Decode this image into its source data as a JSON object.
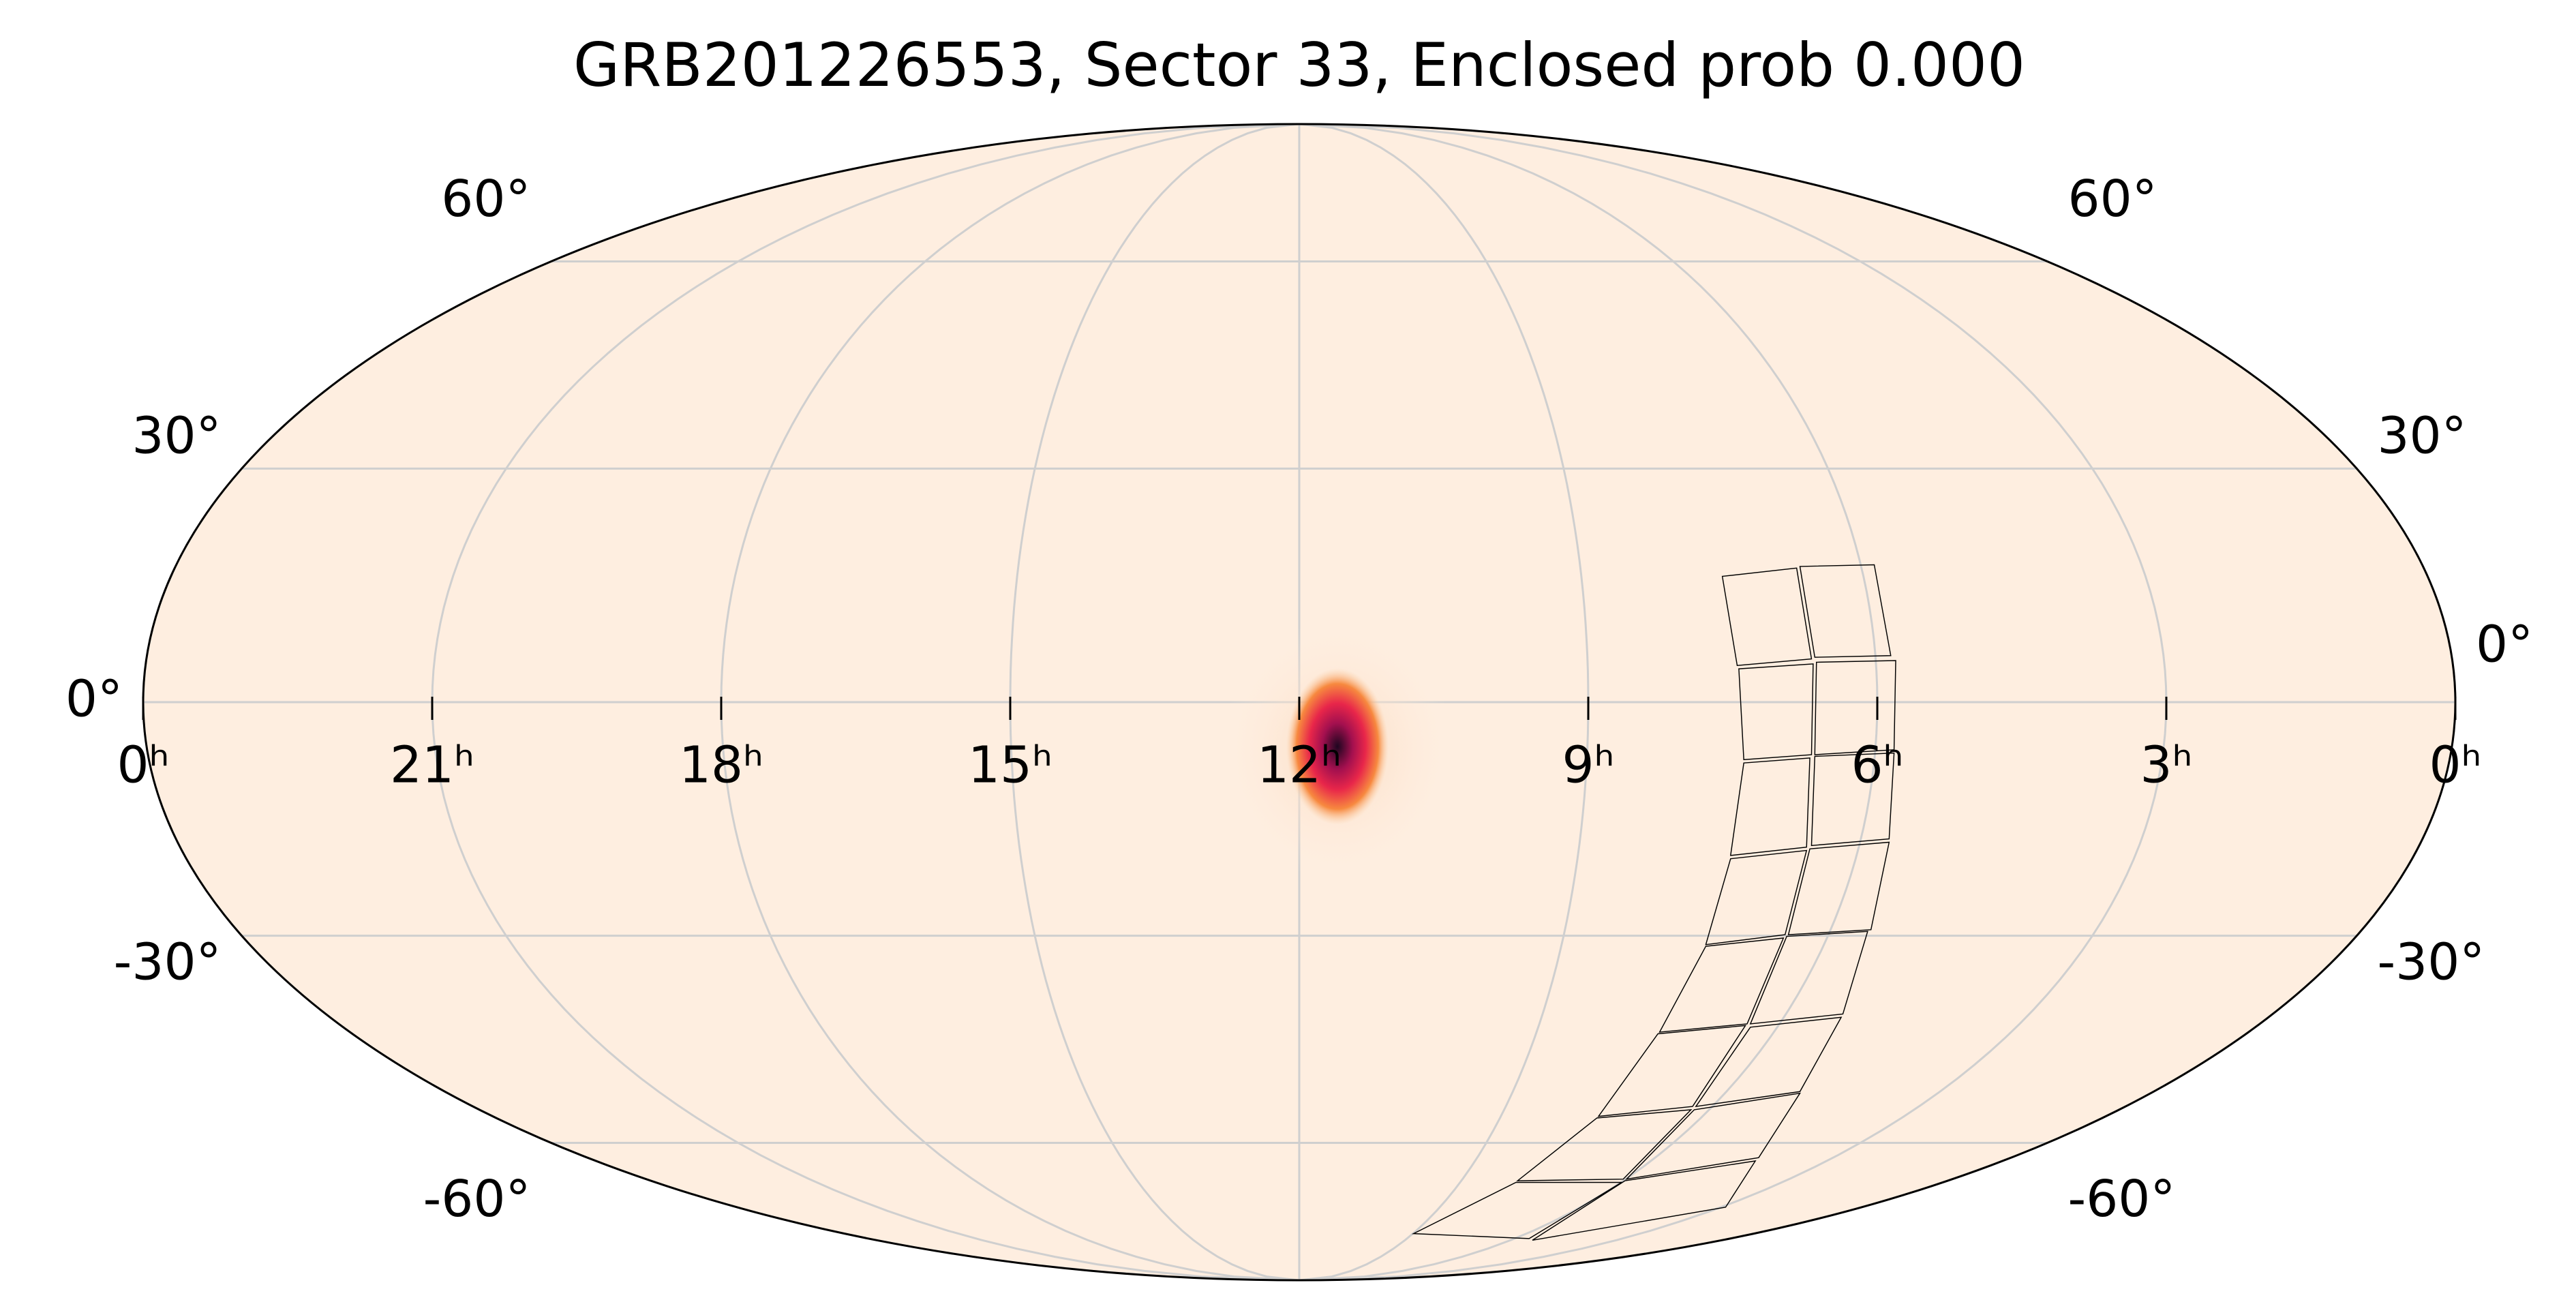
{
  "chart_data": {
    "type": "mollweide",
    "title": "GRB201226553, Sector 33, Enclosed prob 0.000",
    "xlim": [
      24,
      0
    ],
    "ylim": [
      -90,
      90
    ],
    "xticks": [
      {
        "value": 24,
        "label": "0ʰ"
      },
      {
        "value": 21,
        "label": "21ʰ"
      },
      {
        "value": 18,
        "label": "18ʰ"
      },
      {
        "value": 15,
        "label": "15ʰ"
      },
      {
        "value": 12,
        "label": "12ʰ"
      },
      {
        "value": 9,
        "label": "9ʰ"
      },
      {
        "value": 6,
        "label": "6ʰ"
      },
      {
        "value": 3,
        "label": "3ʰ"
      },
      {
        "value": 0,
        "label": "0ʰ"
      }
    ],
    "yticks": [
      {
        "value": 60,
        "label": "60°"
      },
      {
        "value": 30,
        "label": "30°"
      },
      {
        "value": 0,
        "label": "0°"
      },
      {
        "value": -30,
        "label": "-30°"
      },
      {
        "value": -60,
        "label": "-60°"
      }
    ],
    "grid": true,
    "background": "#feeee0",
    "grid_color": "#cfcfcf"
  }
}
